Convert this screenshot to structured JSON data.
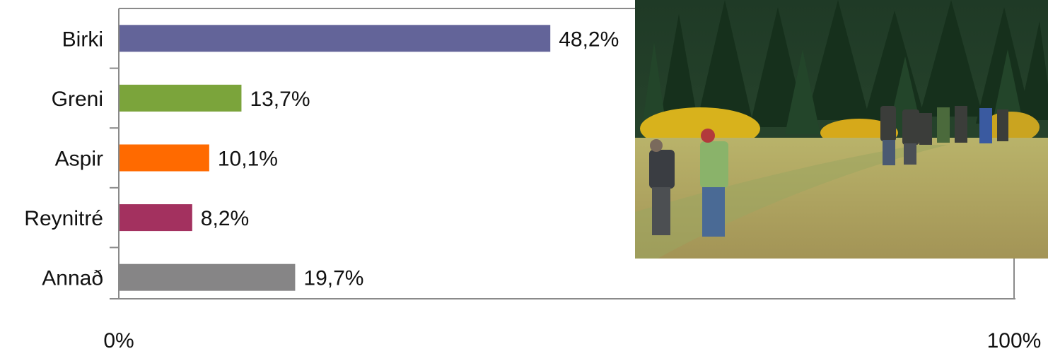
{
  "chart_data": {
    "type": "bar",
    "orientation": "horizontal",
    "categories": [
      "Birki",
      "Greni",
      "Aspir",
      "Reynitré",
      "Annað"
    ],
    "values": [
      48.2,
      13.7,
      10.1,
      8.2,
      19.7
    ],
    "value_labels": [
      "48,2%",
      "13,7%",
      "10,1%",
      "8,2%",
      "19,7%"
    ],
    "colors": [
      "#636499",
      "#7ba43b",
      "#ff6a00",
      "#a3315f",
      "#868586"
    ],
    "xlim": [
      0,
      100
    ],
    "x_tick_labels": [
      "0%",
      "100%"
    ],
    "grid": false,
    "legend": "none"
  },
  "photo": {
    "description_icon": "forest-meadow-hikers-photo"
  }
}
